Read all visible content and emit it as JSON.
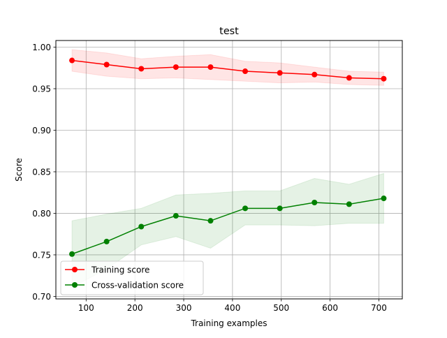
{
  "chart_data": {
    "type": "line",
    "title": "test",
    "xlabel": "Training examples",
    "ylabel": "Score",
    "xlim": [
      38,
      748
    ],
    "ylim": [
      0.697,
      1.008
    ],
    "xticks": [
      100,
      200,
      300,
      400,
      500,
      600,
      700
    ],
    "yticks": [
      0.7,
      0.75,
      0.8,
      0.85,
      0.9,
      0.95,
      1.0
    ],
    "grid": true,
    "legend_position": "lower-left",
    "x": [
      71,
      142,
      213,
      284,
      355,
      426,
      497,
      568,
      639,
      710
    ],
    "series": [
      {
        "name": "Training score",
        "color": "#ff0000",
        "fill_color": "#ff0000",
        "values": [
          0.984,
          0.979,
          0.974,
          0.976,
          0.976,
          0.971,
          0.969,
          0.967,
          0.963,
          0.962
        ],
        "upper": [
          0.997,
          0.993,
          0.986,
          0.989,
          0.991,
          0.983,
          0.981,
          0.976,
          0.971,
          0.97
        ],
        "lower": [
          0.971,
          0.965,
          0.962,
          0.963,
          0.961,
          0.959,
          0.957,
          0.958,
          0.955,
          0.954
        ]
      },
      {
        "name": "Cross-validation score",
        "color": "#008000",
        "fill_color": "#008000",
        "values": [
          0.751,
          0.766,
          0.784,
          0.797,
          0.791,
          0.806,
          0.806,
          0.813,
          0.811,
          0.818
        ],
        "upper": [
          0.791,
          0.799,
          0.806,
          0.822,
          0.824,
          0.827,
          0.827,
          0.842,
          0.835,
          0.848
        ],
        "lower": [
          0.711,
          0.733,
          0.762,
          0.772,
          0.758,
          0.786,
          0.786,
          0.785,
          0.788,
          0.788
        ]
      }
    ]
  }
}
